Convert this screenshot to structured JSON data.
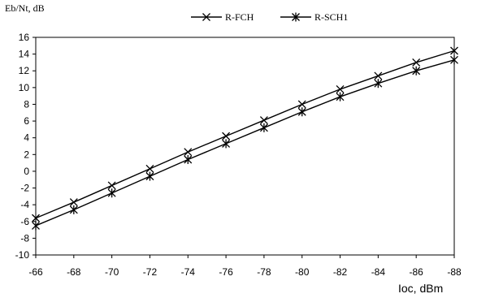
{
  "chart_data": {
    "type": "line",
    "ylabel": "Eb/Nt, dB",
    "xlabel": "Ioc, dBm",
    "x": [
      -66,
      -68,
      -70,
      -72,
      -74,
      -76,
      -78,
      -80,
      -82,
      -84,
      -86,
      -88
    ],
    "ylim": [
      -10,
      16
    ],
    "yticks": [
      -10,
      -8,
      -6,
      -4,
      -2,
      0,
      2,
      4,
      6,
      8,
      10,
      12,
      14,
      16
    ],
    "grid": false,
    "legend_position": "top",
    "series": [
      {
        "name": "R-FCH",
        "marker": "x",
        "values": [
          -5.6,
          -3.7,
          -1.7,
          0.3,
          2.3,
          4.2,
          6.1,
          8.0,
          9.8,
          11.4,
          13.0,
          14.4
        ]
      },
      {
        "name": "R-SCH1",
        "marker": "asterisk",
        "values": [
          -6.5,
          -4.6,
          -2.6,
          -0.6,
          1.4,
          3.3,
          5.2,
          7.1,
          8.9,
          10.5,
          12.0,
          13.3
        ]
      }
    ]
  }
}
